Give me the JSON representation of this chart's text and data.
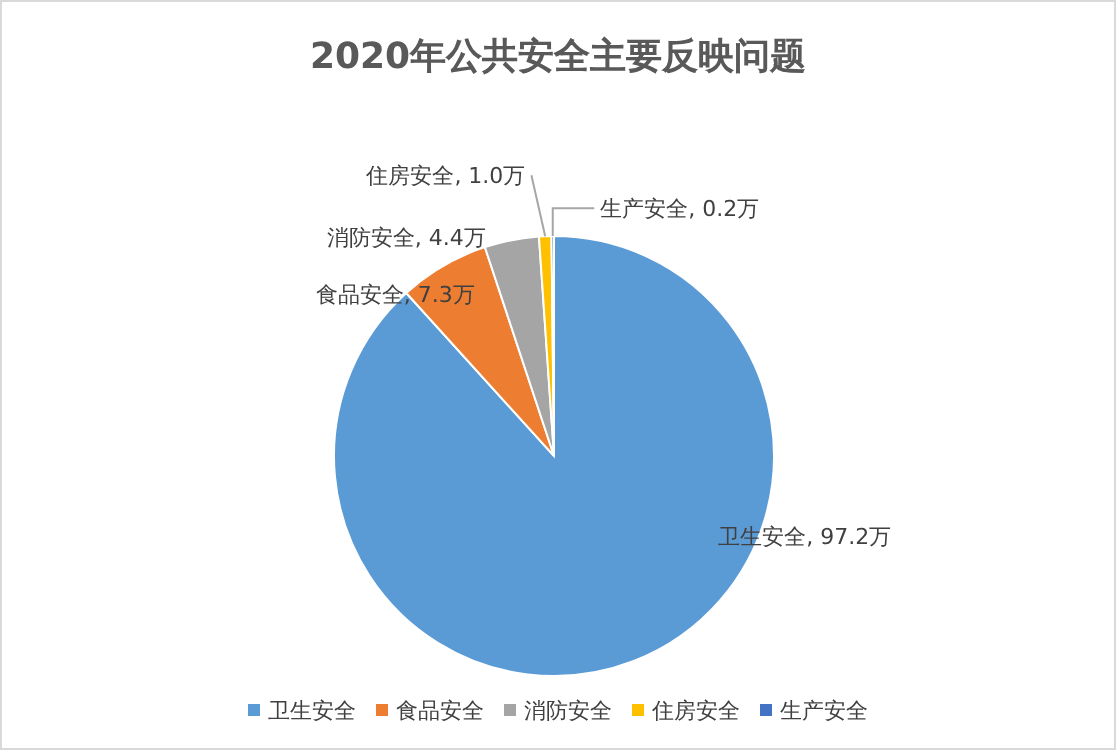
{
  "chart_data": {
    "type": "pie",
    "title": "2020年公共安全主要反映问题",
    "categories": [
      "卫生安全",
      "食品安全",
      "消防安全",
      "住房安全",
      "生产安全"
    ],
    "values": [
      97.2,
      7.3,
      4.4,
      1.0,
      0.2
    ],
    "colors": [
      "#5b9bd5",
      "#ed7d31",
      "#a5a5a5",
      "#ffc000",
      "#4472c4"
    ],
    "value_labels": [
      "卫生安全, 97.2万",
      "食品安全, 7.3万",
      "消防安全, 4.4万",
      "住房安全, 1.0万",
      "生产安全, 0.2万"
    ],
    "legend": "bottom"
  }
}
